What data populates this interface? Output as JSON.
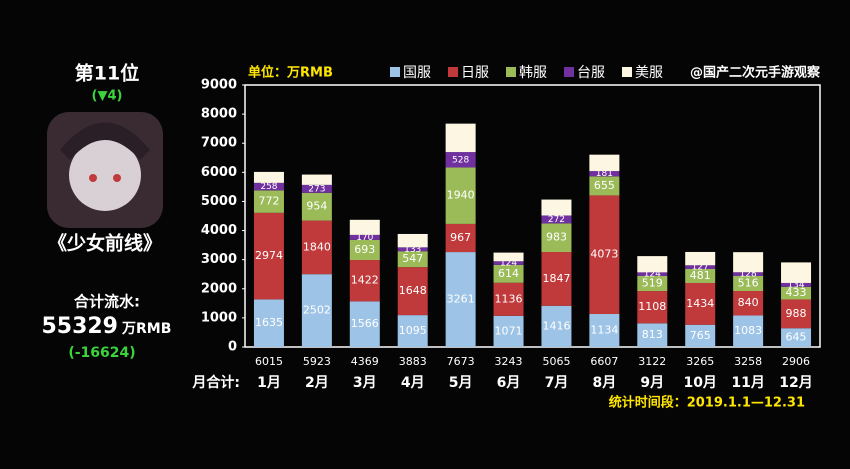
{
  "chart_data": {
    "type": "stacked-bar",
    "unit": "单位：万RMB",
    "source": "@国产二次元手游观察",
    "period": "统计时间段：2019.1.1—12.31",
    "totals_label": "月合计:",
    "categories": [
      "1月",
      "2月",
      "3月",
      "4月",
      "5月",
      "6月",
      "7月",
      "8月",
      "9月",
      "10月",
      "11月",
      "12月"
    ],
    "totals": [
      6015,
      5923,
      4369,
      3883,
      7673,
      3243,
      5065,
      6607,
      3122,
      3265,
      3258,
      2906
    ],
    "series": [
      {
        "name": "国服",
        "color": "#9dc3e6",
        "values": [
          1635,
          2502,
          1566,
          1095,
          3261,
          1071,
          1416,
          1134,
          813,
          765,
          1083,
          645
        ]
      },
      {
        "name": "日服",
        "color": "#c0393b",
        "values": [
          2974,
          1840,
          1422,
          1648,
          967,
          1136,
          1847,
          4073,
          1108,
          1434,
          840,
          988
        ]
      },
      {
        "name": "韩服",
        "color": "#9bbb59",
        "values": [
          772,
          954,
          693,
          547,
          1940,
          614,
          983,
          655,
          519,
          481,
          516,
          433
        ]
      },
      {
        "name": "台服",
        "color": "#7030a0",
        "values": [
          258,
          273,
          170,
          133,
          528,
          124,
          272,
          181,
          124,
          127,
          128,
          134
        ]
      },
      {
        "name": "美服",
        "color": "#fdf6e3",
        "values": [
          376,
          354,
          518,
          460,
          977,
          298,
          547,
          564,
          558,
          458,
          691,
          706
        ]
      }
    ],
    "ylim": [
      0,
      9000
    ],
    "yticks": [
      0,
      1000,
      2000,
      3000,
      4000,
      5000,
      6000,
      7000,
      8000,
      9000
    ]
  },
  "panel": {
    "rank": "第11位",
    "change": "(▼4)",
    "game": "《少女前线》",
    "sum_label": "合计流水:",
    "sum": "55329",
    "sum_unit": "万RMB",
    "sum_change": "(-16624)"
  }
}
